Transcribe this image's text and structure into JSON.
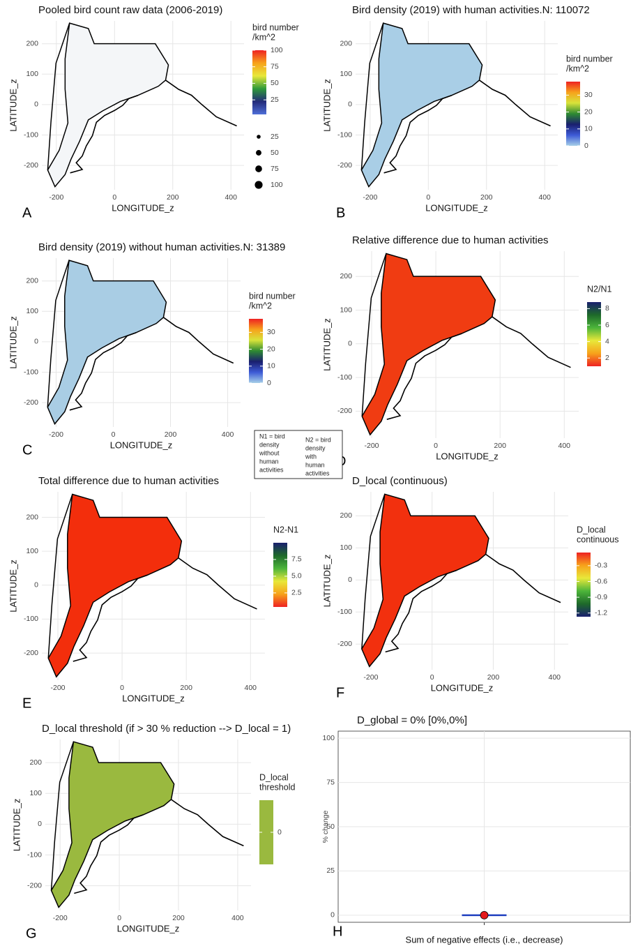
{
  "chart_data": [
    {
      "type": "map",
      "letter": "A",
      "title": "Pooled bird count raw data (2006-2019)",
      "xlabel": "LONGITUDE_z",
      "ylabel": "LATITUDE_z",
      "xlim": [
        -250,
        445
      ],
      "ylim": [
        -280,
        275
      ],
      "xticks": [
        -200,
        0,
        200,
        400
      ],
      "yticks": [
        -200,
        -100,
        0,
        100,
        200
      ],
      "grid": true,
      "map_color": "#f4f6f8",
      "legend": {
        "title": [
          "bird number",
          " /km^2"
        ],
        "lim": [
          3,
          100
        ],
        "ticks": [
          25,
          50,
          75,
          100
        ],
        "colors": [
          "#4f6fd8",
          "#232b7a",
          "#2e9a3a",
          "#e8e83a",
          "#f7a21b",
          "#ee2222"
        ],
        "sizes": [
          25,
          50,
          75,
          100
        ]
      }
    },
    {
      "type": "map",
      "letter": "B",
      "title": "Bird density (2019) with human activities.N: 110072",
      "xlabel": "LONGITUDE_z",
      "ylabel": "LATITUDE_z",
      "xlim": [
        -250,
        445
      ],
      "ylim": [
        -280,
        275
      ],
      "xticks": [
        -200,
        0,
        200,
        400
      ],
      "yticks": [
        -200,
        -100,
        0,
        100,
        200
      ],
      "grid": true,
      "map_color": "#a9cee6",
      "legend": {
        "title": [
          "bird number",
          " /km^2"
        ],
        "lim": [
          0,
          38
        ],
        "ticks": [
          0,
          10,
          20,
          30
        ],
        "colors": [
          "#a6cfe8",
          "#3d5ad6",
          "#1a1f6e",
          "#2e8a32",
          "#d7e33a",
          "#f7a21b",
          "#ee2222"
        ]
      }
    },
    {
      "type": "map",
      "letter": "C",
      "title": "Bird density (2019) without human activities.N: 31389",
      "xlabel": "LONGITUDE_z",
      "ylabel": "LATITUDE_z",
      "xlim": [
        -250,
        445
      ],
      "ylim": [
        -280,
        275
      ],
      "xticks": [
        -200,
        0,
        200,
        400
      ],
      "yticks": [
        -200,
        -100,
        0,
        100,
        200
      ],
      "grid": true,
      "map_color": "#a9cde4",
      "legend": {
        "title": [
          "bird number",
          " /km^2"
        ],
        "lim": [
          0,
          38
        ],
        "ticks": [
          0,
          10,
          20,
          30
        ],
        "colors": [
          "#a6cfe8",
          "#3d5ad6",
          "#1a1f6e",
          "#2e8a32",
          "#d7e33a",
          "#f7a21b",
          "#ee2222"
        ]
      }
    },
    {
      "type": "map",
      "letter": "D",
      "title": "Relative difference due to human activities",
      "xlabel": "LONGITUDE_z",
      "ylabel": "LATITUDE_z",
      "xlim": [
        -250,
        445
      ],
      "ylim": [
        -280,
        275
      ],
      "xticks": [
        -200,
        0,
        200,
        400
      ],
      "yticks": [
        -200,
        -100,
        0,
        100,
        200
      ],
      "grid": true,
      "map_color": "#f03c12",
      "legend": {
        "title": [
          "N2/N1"
        ],
        "lim": [
          1,
          8.8
        ],
        "ticks": [
          2,
          4,
          6,
          8
        ],
        "colors": [
          "#ee2222",
          "#f7a21b",
          "#e8e83a",
          "#4cb43a",
          "#1e6a2a",
          "#1a1f6e"
        ]
      }
    },
    {
      "type": "map",
      "letter": "E",
      "title": "Total difference due to human activities",
      "xlabel": "LONGITUDE_z",
      "ylabel": "LATITUDE_z",
      "xlim": [
        -250,
        445
      ],
      "ylim": [
        -280,
        275
      ],
      "xticks": [
        -200,
        0,
        200,
        400
      ],
      "yticks": [
        -200,
        -100,
        0,
        100,
        200
      ],
      "grid": true,
      "map_color": "#f32e0c",
      "legend": {
        "title": [
          "N2-N1"
        ],
        "lim": [
          0.4,
          10
        ],
        "ticks": [
          {
            "value": 2.5,
            "label": "2.5"
          },
          {
            "value": 5,
            "label": "5.0"
          },
          {
            "value": 7.5,
            "label": "7.5"
          }
        ],
        "colors": [
          "#ee2222",
          "#f7a21b",
          "#e8e83a",
          "#4cb43a",
          "#1e6a2a",
          "#1a1f6e"
        ]
      }
    },
    {
      "type": "map",
      "letter": "F",
      "title": "D_local (continuous)",
      "xlabel": "LONGITUDE_z",
      "ylabel": "LATITUDE_z",
      "xlim": [
        -250,
        445
      ],
      "ylim": [
        -280,
        275
      ],
      "xticks": [
        -200,
        0,
        200,
        400
      ],
      "yticks": [
        -200,
        -100,
        0,
        100,
        200
      ],
      "grid": true,
      "map_color": "#f2300e",
      "legend": {
        "title": [
          "D_local",
          " continuous"
        ],
        "lim": [
          -1.27,
          -0.05
        ],
        "ticks": [
          -1.2,
          -0.9,
          -0.6,
          -0.3
        ],
        "colors": [
          "#1a1f6e",
          "#1e6a2a",
          "#4cb43a",
          "#e8e83a",
          "#f7a21b",
          "#ee2222"
        ]
      }
    },
    {
      "type": "map",
      "letter": "G",
      "title": "D_local threshold (if > 30 % reduction --> D_local = 1)",
      "xlabel": "LONGITUDE_z",
      "ylabel": "LATITUDE_z",
      "xlim": [
        -250,
        445
      ],
      "ylim": [
        -280,
        275
      ],
      "xticks": [
        -200,
        0,
        200,
        400
      ],
      "yticks": [
        -200,
        -100,
        0,
        100,
        200
      ],
      "grid": true,
      "map_color": "#9ab93f",
      "legend": {
        "title": [
          "D_local",
          " threshold"
        ],
        "lim": [
          -1,
          1
        ],
        "ticks": [
          0
        ],
        "colors": [
          "#9ab93f",
          "#9ab93f"
        ]
      }
    },
    {
      "type": "point",
      "letter": "H",
      "title": "D_global = 0% [0%,0%]",
      "ylabel": "% change",
      "categories": [
        "Sum of negative effects (i.e., decrease)"
      ],
      "values": [
        0
      ],
      "ci_lower": [
        0
      ],
      "ci_upper": [
        0
      ],
      "color": "#e41a1c",
      "ci_color": "#1f3fbf",
      "ylim": [
        -4,
        104
      ],
      "yticks": [
        0,
        25,
        50,
        75,
        100
      ],
      "grid": true
    }
  ],
  "notes": [
    [
      "N1 = bird",
      "density",
      "without",
      "human",
      "activities"
    ],
    [
      "N2 = bird",
      "density",
      "with",
      "human",
      "activities"
    ]
  ]
}
